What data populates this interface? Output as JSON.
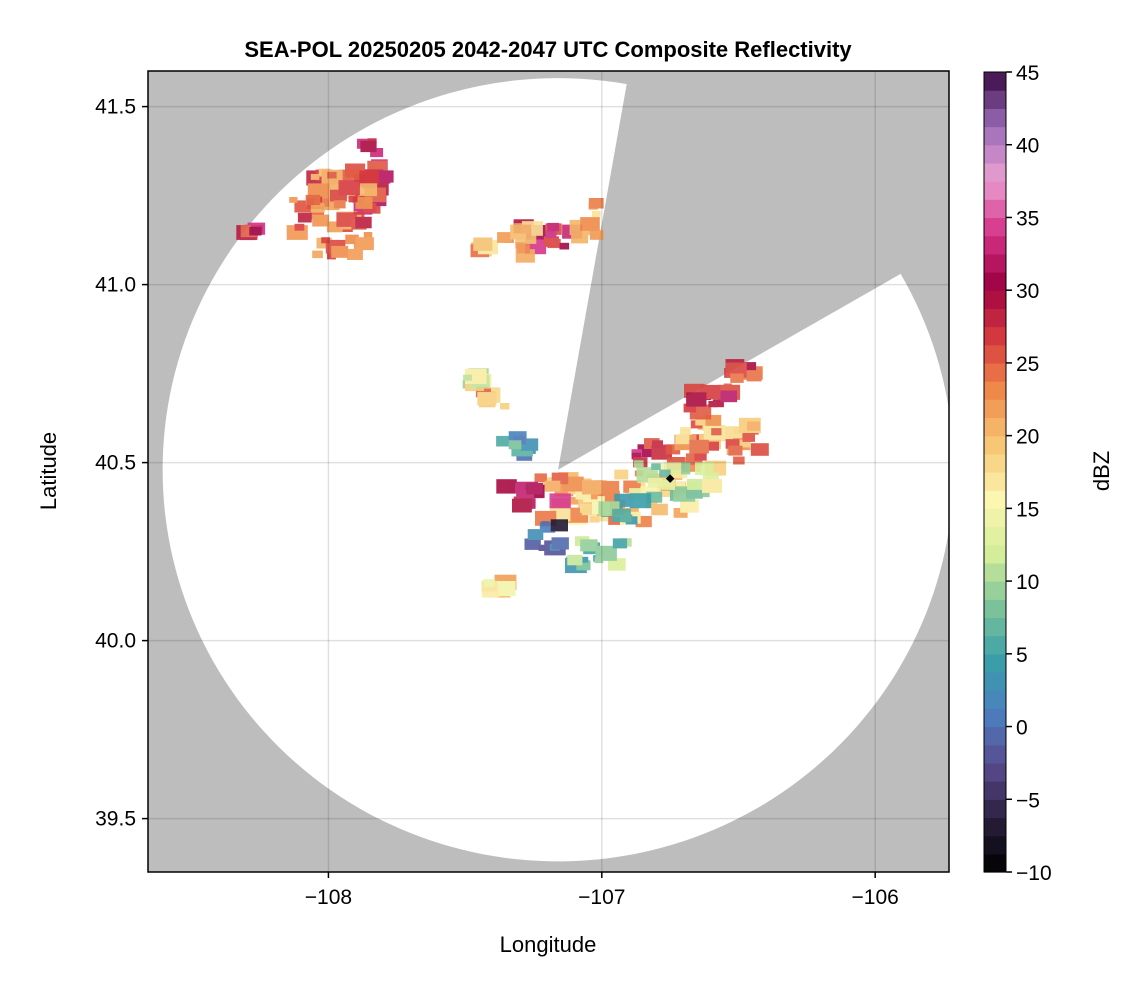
{
  "chart_data": {
    "type": "heatmap",
    "title": "SEA-POL 20250205 2042-2047 UTC Composite Reflectivity",
    "xlabel": "Longitude",
    "ylabel": "Latitude",
    "xlim": [
      -108.66,
      -105.73
    ],
    "ylim": [
      39.35,
      41.6
    ],
    "xticks": [
      -108,
      -107,
      -106
    ],
    "xtick_labels": [
      "−108",
      "−107",
      "−106"
    ],
    "yticks": [
      39.5,
      40.0,
      40.5,
      41.0,
      41.5
    ],
    "ytick_labels": [
      "39.5",
      "40.0",
      "40.5",
      "41.0",
      "41.5"
    ],
    "grid": true,
    "background_color": "#bdbdbd",
    "coverage": {
      "center_lon": -107.16,
      "center_lat": 40.48,
      "radius_deg_lat": 1.1,
      "blocked_sectors_deg_from_north": [
        [
          10,
          60
        ]
      ]
    },
    "radar_marker": {
      "lon": -106.75,
      "lat": 40.455
    },
    "colorbar": {
      "label": "dBZ",
      "min": -10,
      "max": 45,
      "step": 1.25,
      "ticks": [
        -10,
        -5,
        0,
        5,
        10,
        15,
        20,
        25,
        30,
        35,
        40,
        45
      ],
      "tick_labels": [
        "−10",
        "−5",
        "0",
        "5",
        "10",
        "15",
        "20",
        "25",
        "30",
        "35",
        "40",
        "45"
      ],
      "colormap": "spectral-extended",
      "colors": [
        "#000000",
        "#2a1f3d",
        "#5a4a8f",
        "#4b7fc0",
        "#3aa0a8",
        "#7fc49a",
        "#d6ee9b",
        "#fbf6b0",
        "#f7c876",
        "#f08c4a",
        "#d73b3f",
        "#9e0142",
        "#d6348a",
        "#ea9fd0",
        "#9a6bb8",
        "#3b0a45"
      ]
    },
    "echo_regions": [
      {
        "lon": -107.85,
        "lat": 41.3,
        "w": 0.12,
        "h": 0.22,
        "dbz": 30
      },
      {
        "lon": -107.95,
        "lat": 41.2,
        "w": 0.2,
        "h": 0.25,
        "dbz": 24
      },
      {
        "lon": -108.07,
        "lat": 41.18,
        "w": 0.12,
        "h": 0.12,
        "dbz": 24
      },
      {
        "lon": -108.28,
        "lat": 41.15,
        "w": 0.04,
        "h": 0.03,
        "dbz": 30
      },
      {
        "lon": -107.2,
        "lat": 41.13,
        "w": 0.2,
        "h": 0.07,
        "dbz": 30
      },
      {
        "lon": -107.35,
        "lat": 41.12,
        "w": 0.2,
        "h": 0.08,
        "dbz": 20
      },
      {
        "lon": -107.05,
        "lat": 41.18,
        "w": 0.1,
        "h": 0.1,
        "dbz": 22
      },
      {
        "lon": -107.4,
        "lat": 40.68,
        "w": 0.12,
        "h": 0.05,
        "dbz": 22
      },
      {
        "lon": -106.95,
        "lat": 40.4,
        "w": 0.55,
        "h": 0.14,
        "dbz": 20
      },
      {
        "lon": -107.25,
        "lat": 40.41,
        "w": 0.22,
        "h": 0.07,
        "dbz": 30
      },
      {
        "lon": -106.82,
        "lat": 40.52,
        "w": 0.12,
        "h": 0.07,
        "dbz": 30
      },
      {
        "lon": -106.58,
        "lat": 40.55,
        "w": 0.32,
        "h": 0.14,
        "dbz": 22
      },
      {
        "lon": -106.62,
        "lat": 40.67,
        "w": 0.18,
        "h": 0.09,
        "dbz": 28
      },
      {
        "lon": -106.48,
        "lat": 40.76,
        "w": 0.1,
        "h": 0.05,
        "dbz": 28
      },
      {
        "lon": -106.72,
        "lat": 40.45,
        "w": 0.3,
        "h": 0.1,
        "dbz": 12
      },
      {
        "lon": -106.92,
        "lat": 40.36,
        "w": 0.14,
        "h": 0.07,
        "dbz": 5
      },
      {
        "lon": -107.22,
        "lat": 40.29,
        "w": 0.14,
        "h": 0.08,
        "dbz": -2
      },
      {
        "lon": -107.02,
        "lat": 40.25,
        "w": 0.22,
        "h": 0.08,
        "dbz": 8
      },
      {
        "lon": -107.3,
        "lat": 40.53,
        "w": 0.12,
        "h": 0.09,
        "dbz": 5
      },
      {
        "lon": -107.38,
        "lat": 40.15,
        "w": 0.08,
        "h": 0.03,
        "dbz": 18
      },
      {
        "lon": -107.45,
        "lat": 40.73,
        "w": 0.1,
        "h": 0.03,
        "dbz": 14
      }
    ]
  }
}
